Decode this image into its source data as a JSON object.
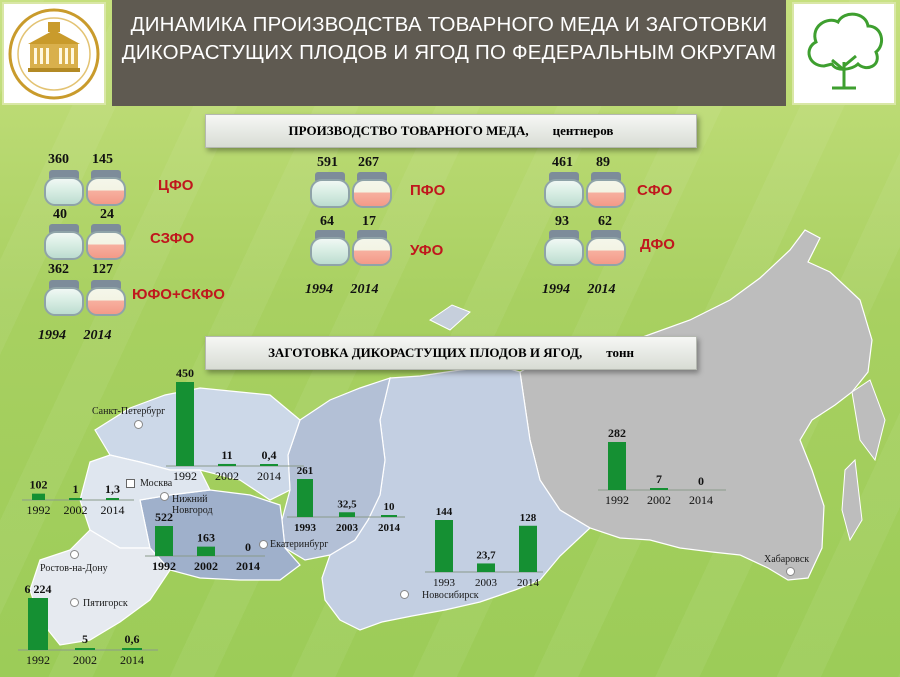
{
  "title": "ДИНАМИКА ПРОИЗВОДСТВА ТОВАРНОГО МЕДА И ЗАГОТОВКИ ДИКОРАСТУЩИХ ПЛОДОВ И ЯГОД ПО ФЕДЕРАЛЬНЫМ ОКРУГАМ",
  "logo_text": "ГОСУДАРСТВЕННАЯ ДУМА",
  "honey_banner": {
    "label": "ПРОИЗВОДСТВО ТОВАРНОГО МЕДА,",
    "unit": "центнеров"
  },
  "berries_banner": {
    "label": "ЗАГОТОВКА ДИКОРАСТУЩИХ ПЛОДОВ И ЯГОД,",
    "unit": "тонн"
  },
  "honey_years_label": "1994 2014",
  "cities": {
    "spb": "Санкт-Петербург",
    "moscow": "Москва",
    "nn1": "Нижний",
    "nn2": "Новгород",
    "ekb": "Екатеринбург",
    "rostov": "Ростов-на-Дону",
    "pyat": "Пятигорск",
    "nsk": "Новосибирск",
    "khab": "Хабаровск"
  },
  "colors": {
    "bar": "#159033",
    "region": "#c0171d",
    "title_bg": "#5f5a51",
    "jar_1994": "#cfe7dc",
    "jar_2014": "#f39a88"
  },
  "chart_data": [
    {
      "type": "table",
      "name": "honey",
      "columns": [
        "1994",
        "2014"
      ],
      "rows": [
        {
          "region": "ЦФО",
          "values": [
            "360",
            "145"
          ]
        },
        {
          "region": "СЗФО",
          "values": [
            "40",
            "24"
          ]
        },
        {
          "region": "ЮФО+СКФО",
          "values": [
            "362",
            "127"
          ]
        },
        {
          "region": "ПФО",
          "values": [
            "591",
            "267"
          ]
        },
        {
          "region": "УФО",
          "values": [
            "64",
            "17"
          ]
        },
        {
          "region": "СФО",
          "values": [
            "461",
            "89"
          ]
        },
        {
          "region": "ДФО",
          "values": [
            "93",
            "62"
          ]
        }
      ]
    },
    {
      "type": "bar",
      "categories": [
        "1992",
        "2002",
        "2014"
      ],
      "values": [
        450,
        11,
        0.4
      ],
      "labels": [
        "450",
        "11",
        "0,4"
      ],
      "ylim": [
        0,
        450
      ]
    },
    {
      "type": "bar",
      "categories": [
        "1992",
        "2002",
        "2014"
      ],
      "values": [
        102,
        1,
        1.3
      ],
      "labels": [
        "102",
        "1",
        "1,3"
      ],
      "ylim": [
        0,
        450
      ]
    },
    {
      "type": "bar",
      "categories": [
        "1992",
        "2002",
        "2014"
      ],
      "values": [
        522,
        163,
        0
      ],
      "labels": [
        "522",
        "163",
        "0"
      ],
      "ylim": [
        0,
        522
      ]
    },
    {
      "type": "bar",
      "categories": [
        "1993",
        "2003",
        "2014"
      ],
      "values": [
        261,
        32.5,
        10
      ],
      "labels": [
        "261",
        "32,5",
        "10"
      ],
      "ylim": [
        0,
        261
      ]
    },
    {
      "type": "bar",
      "categories": [
        "1993",
        "2003",
        "2014"
      ],
      "values": [
        144,
        23.7,
        128
      ],
      "labels": [
        "144",
        "23,7",
        "128"
      ],
      "ylim": [
        0,
        144
      ]
    },
    {
      "type": "bar",
      "categories": [
        "1992",
        "2002",
        "2014"
      ],
      "values": [
        282,
        7,
        0
      ],
      "labels": [
        "282",
        "7",
        "0"
      ],
      "ylim": [
        0,
        282
      ]
    },
    {
      "type": "bar",
      "categories": [
        "1992",
        "2002",
        "2014"
      ],
      "values": [
        6224,
        5,
        0.6
      ],
      "labels": [
        "6 224",
        "5",
        "0,6"
      ],
      "ylim": [
        0,
        6224
      ]
    }
  ]
}
